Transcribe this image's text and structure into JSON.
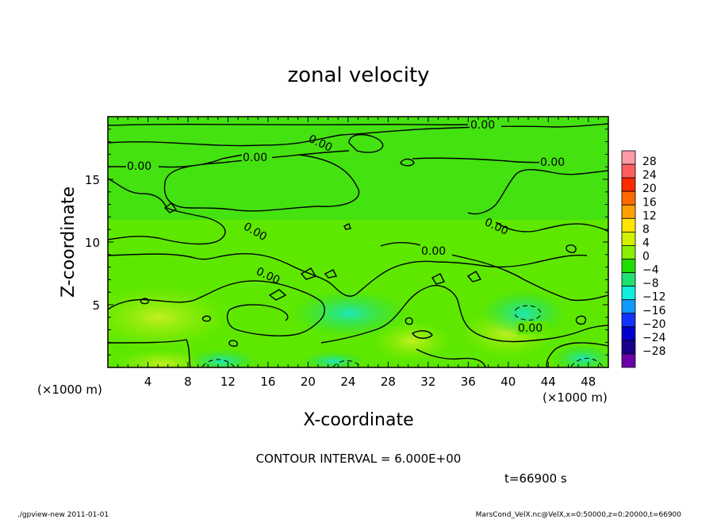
{
  "chart_data": {
    "type": "heatmap",
    "title": "zonal velocity",
    "xlabel": "X-coordinate",
    "ylabel": "Z-coordinate",
    "x_unit_label": "(×1000 m)",
    "y_unit_label": "(×1000 m)",
    "x_ticks": [
      4,
      8,
      12,
      16,
      20,
      24,
      28,
      32,
      36,
      40,
      44,
      48
    ],
    "y_ticks": [
      5,
      10,
      15
    ],
    "xlim": [
      0,
      50
    ],
    "ylim": [
      0,
      20
    ],
    "contour_labels": [
      "0.00",
      "0.00",
      "0.00",
      "0.00",
      "0.00",
      "0.00",
      "0.00",
      "0.00",
      "0.00",
      "0.00"
    ],
    "colorbar": {
      "labels": [
        "28",
        "24",
        "20",
        "16",
        "12",
        "8",
        "4",
        "0",
        "−4",
        "−8",
        "−12",
        "−16",
        "−20",
        "−24",
        "−28"
      ],
      "colors": [
        "#ff9aa8",
        "#ff5e5e",
        "#ff2a00",
        "#ff6a00",
        "#ffa000",
        "#ffe600",
        "#d2f000",
        "#8aee00",
        "#22dd00",
        "#22e070",
        "#11eedd",
        "#1199ff",
        "#1133ff",
        "#0000cc",
        "#1a0088",
        "#6a00a8"
      ]
    },
    "field_description_values": {
      "background_value": 0,
      "max_value_region_x": 6,
      "min_value_region_x": 46
    },
    "contour_interval_text": "CONTOUR INTERVAL = 6.000E+00",
    "time_text": "t=66900 s"
  },
  "footer": {
    "left": "./gpview-new  2011-01-01",
    "right": "MarsCond_VelX.nc@VelX,x=0:50000,z=0:20000,t=66900"
  }
}
